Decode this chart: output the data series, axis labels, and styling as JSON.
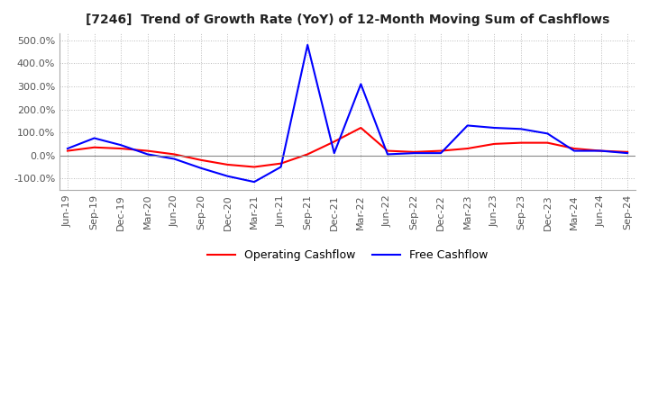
{
  "title": "[7246]  Trend of Growth Rate (YoY) of 12-Month Moving Sum of Cashflows",
  "ylim": [
    -150,
    530
  ],
  "yticks": [
    -100,
    0,
    100,
    200,
    300,
    400,
    500
  ],
  "background_color": "#ffffff",
  "grid_color": "#bbbbbb",
  "x_labels": [
    "Jun-19",
    "Sep-19",
    "Dec-19",
    "Mar-20",
    "Jun-20",
    "Sep-20",
    "Dec-20",
    "Mar-21",
    "Jun-21",
    "Sep-21",
    "Dec-21",
    "Mar-22",
    "Jun-22",
    "Sep-22",
    "Dec-22",
    "Mar-23",
    "Jun-23",
    "Sep-23",
    "Dec-23",
    "Mar-24",
    "Jun-24",
    "Sep-24"
  ],
  "operating_cashflow": [
    20,
    35,
    30,
    20,
    5,
    -20,
    -40,
    -50,
    -35,
    5,
    60,
    120,
    20,
    15,
    20,
    30,
    50,
    55,
    55,
    30,
    20,
    15
  ],
  "free_cashflow": [
    30,
    75,
    45,
    5,
    -15,
    -55,
    -90,
    -115,
    -50,
    480,
    10,
    310,
    5,
    10,
    10,
    130,
    120,
    115,
    95,
    20,
    20,
    10
  ],
  "operating_color": "#ff0000",
  "free_color": "#0000ff",
  "legend_labels": [
    "Operating Cashflow",
    "Free Cashflow"
  ]
}
